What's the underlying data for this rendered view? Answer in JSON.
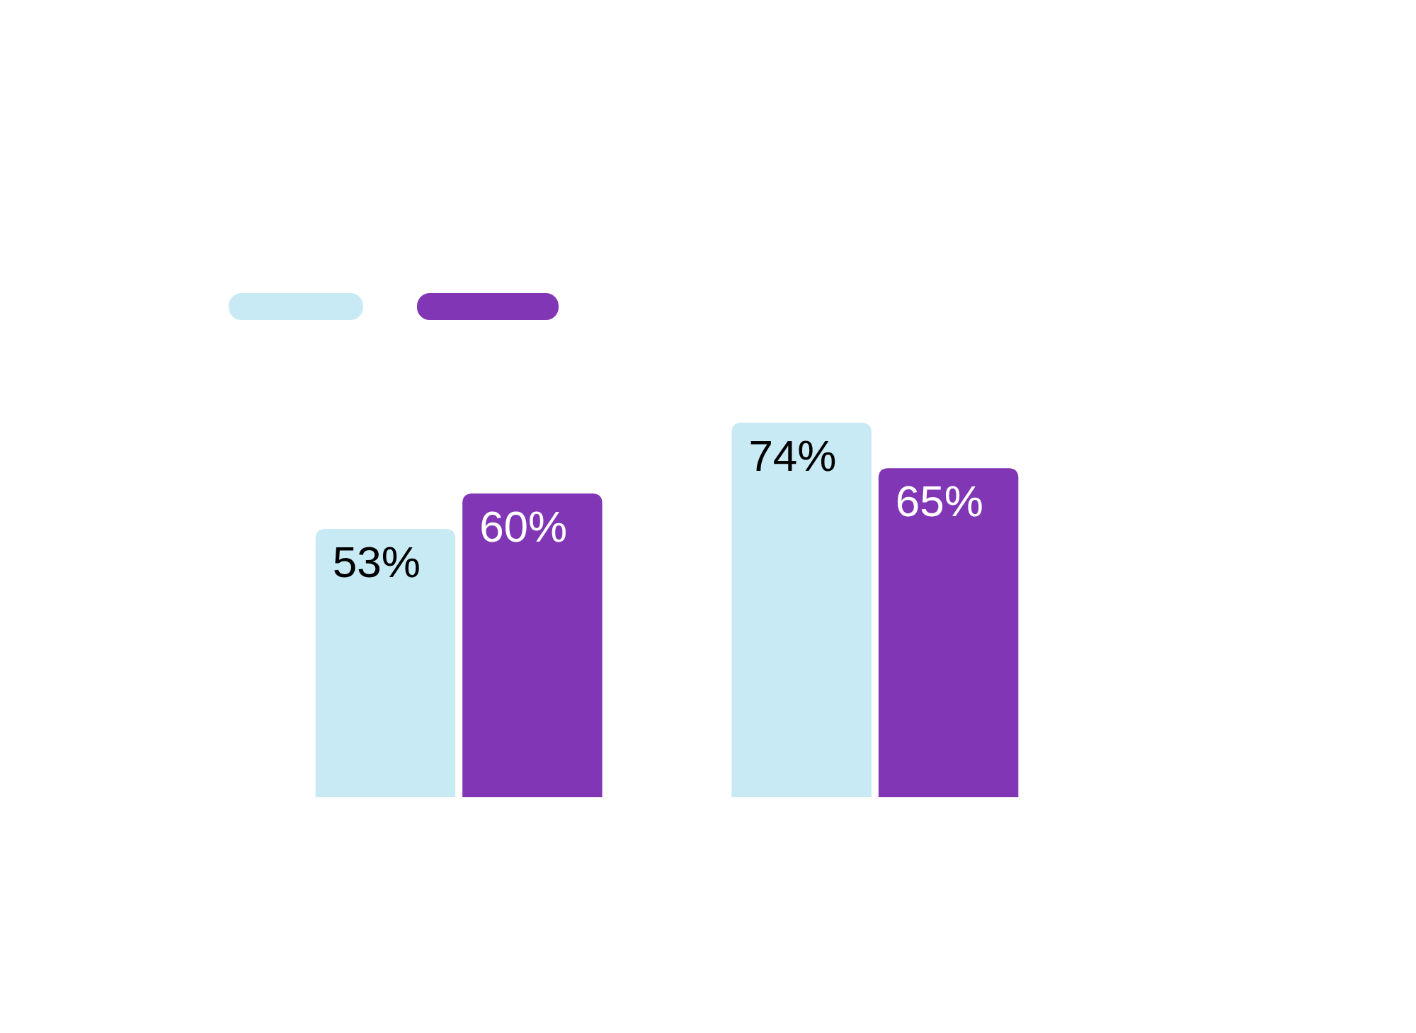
{
  "chart_data": {
    "type": "bar",
    "categories": [
      null,
      null
    ],
    "series": [
      {
        "color": "#c8eaf5",
        "values": [
          53,
          74
        ],
        "value_labels": [
          "53%",
          "74%"
        ]
      },
      {
        "color": "#8136b5",
        "values": [
          60,
          65
        ],
        "value_labels": [
          "60%",
          "65%"
        ]
      }
    ]
  }
}
